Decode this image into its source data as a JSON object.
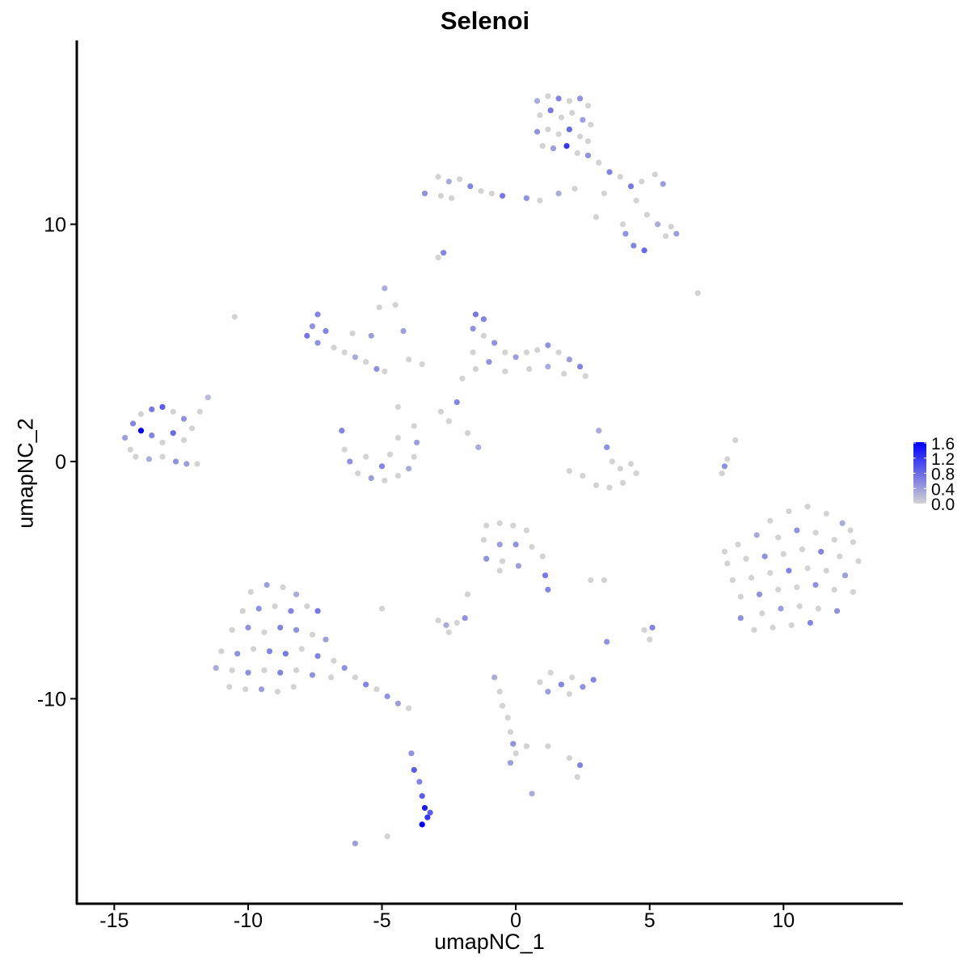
{
  "chart_data": {
    "type": "scatter",
    "title": "Selenoi",
    "xlabel": "umapNC_1",
    "ylabel": "umapNC_2",
    "xlim": [
      -16.4,
      14.43
    ],
    "ylim": [
      -18.64,
      17.75
    ],
    "xticks": [
      -15,
      -10,
      -5,
      0,
      5,
      10
    ],
    "yticks": [
      -10,
      0,
      10
    ],
    "grid": false,
    "legend": {
      "position": "right",
      "type": "colorbar",
      "range": [
        0,
        1.6
      ],
      "ticks": [
        "0.0",
        "0.4",
        "0.8",
        "1.2",
        "1.6"
      ],
      "low_color": "#d3d3d3",
      "high_color": "#0000ff"
    },
    "point_fields": [
      "x",
      "y",
      "expression"
    ],
    "points": [
      [
        0.8,
        15.2,
        0.3
      ],
      [
        1.2,
        15.4,
        0
      ],
      [
        1.6,
        15.3,
        0.6
      ],
      [
        2.0,
        15.2,
        0
      ],
      [
        2.4,
        15.3,
        0.5
      ],
      [
        2.7,
        15.0,
        0
      ],
      [
        0.9,
        14.6,
        0
      ],
      [
        1.3,
        14.8,
        0.7
      ],
      [
        1.7,
        14.5,
        0
      ],
      [
        2.1,
        14.7,
        0
      ],
      [
        2.5,
        14.4,
        0.4
      ],
      [
        2.8,
        14.2,
        0
      ],
      [
        0.8,
        13.9,
        0.5
      ],
      [
        1.2,
        14.0,
        0
      ],
      [
        1.6,
        13.8,
        0
      ],
      [
        2.0,
        14.0,
        0.8
      ],
      [
        2.4,
        13.7,
        0
      ],
      [
        2.7,
        13.5,
        0
      ],
      [
        1.0,
        13.3,
        0
      ],
      [
        1.4,
        13.2,
        0.4
      ],
      [
        1.9,
        13.3,
        1.2
      ],
      [
        2.3,
        13.0,
        0
      ],
      [
        2.7,
        12.9,
        0.5
      ],
      [
        3.1,
        12.6,
        0
      ],
      [
        3.5,
        12.2,
        0.6
      ],
      [
        3.9,
        12.0,
        0
      ],
      [
        4.3,
        11.6,
        0.7
      ],
      [
        4.7,
        11.8,
        0
      ],
      [
        5.2,
        12.1,
        0
      ],
      [
        5.5,
        11.7,
        0.4
      ],
      [
        4.5,
        11.0,
        0
      ],
      [
        4.9,
        10.4,
        0
      ],
      [
        5.3,
        10.0,
        0.3
      ],
      [
        5.8,
        9.9,
        0
      ],
      [
        6.0,
        9.6,
        0.4
      ],
      [
        5.6,
        9.5,
        0
      ],
      [
        4.1,
        9.6,
        0.5
      ],
      [
        4.4,
        9.1,
        0.6
      ],
      [
        4.8,
        8.9,
        0.8
      ],
      [
        4.0,
        10.0,
        0
      ],
      [
        3.0,
        10.3,
        0
      ],
      [
        3.3,
        11.3,
        0
      ],
      [
        2.2,
        11.5,
        0
      ],
      [
        1.6,
        11.3,
        0.3
      ],
      [
        0.9,
        11.0,
        0
      ],
      [
        0.4,
        11.1,
        0.5
      ],
      [
        -2.9,
        12.0,
        0
      ],
      [
        -2.5,
        11.8,
        0.3
      ],
      [
        -2.1,
        11.9,
        0
      ],
      [
        -1.7,
        11.6,
        0.6
      ],
      [
        -1.3,
        11.4,
        0
      ],
      [
        -0.9,
        11.3,
        0
      ],
      [
        -0.5,
        11.2,
        0.7
      ],
      [
        -2.8,
        11.2,
        0
      ],
      [
        -2.4,
        11.1,
        0
      ],
      [
        -3.4,
        11.3,
        0.5
      ],
      [
        -2.7,
        8.8,
        0.6
      ],
      [
        -2.9,
        8.6,
        0
      ],
      [
        -14.6,
        1.0,
        0.4
      ],
      [
        -14.3,
        1.6,
        0.6
      ],
      [
        -14.0,
        2.0,
        0
      ],
      [
        -13.6,
        2.2,
        0.7
      ],
      [
        -13.2,
        2.3,
        0.9
      ],
      [
        -12.8,
        2.1,
        0
      ],
      [
        -12.4,
        1.8,
        0.5
      ],
      [
        -14.4,
        0.5,
        0
      ],
      [
        -14.0,
        1.3,
        1.6
      ],
      [
        -13.6,
        1.1,
        0.6
      ],
      [
        -13.2,
        0.8,
        0
      ],
      [
        -12.8,
        1.2,
        0.8
      ],
      [
        -12.4,
        0.9,
        0
      ],
      [
        -14.2,
        0.2,
        0
      ],
      [
        -13.7,
        0.1,
        0.3
      ],
      [
        -13.2,
        0.2,
        0
      ],
      [
        -12.7,
        0.0,
        0.5
      ],
      [
        -12.3,
        -0.1,
        0.4
      ],
      [
        -11.9,
        -0.1,
        0
      ],
      [
        -11.8,
        2.1,
        0
      ],
      [
        -11.5,
        2.7,
        0.2
      ],
      [
        -12.1,
        1.4,
        0
      ],
      [
        -7.4,
        6.2,
        0.6
      ],
      [
        -7.6,
        5.7,
        0.5
      ],
      [
        -7.8,
        5.3,
        0.7
      ],
      [
        -7.4,
        5.0,
        0.5
      ],
      [
        -7.1,
        5.5,
        0.6
      ],
      [
        -6.8,
        4.8,
        0
      ],
      [
        -6.4,
        4.6,
        0
      ],
      [
        -6.0,
        4.4,
        0.3
      ],
      [
        -5.6,
        4.2,
        0
      ],
      [
        -5.2,
        3.9,
        0.5
      ],
      [
        -4.9,
        3.8,
        0
      ],
      [
        -5.4,
        5.3,
        0.4
      ],
      [
        -6.1,
        5.4,
        0
      ],
      [
        -5.1,
        6.5,
        0
      ],
      [
        -4.9,
        7.3,
        0.3
      ],
      [
        -4.5,
        6.6,
        0
      ],
      [
        -4.2,
        5.5,
        0.4
      ],
      [
        -4.0,
        4.3,
        0
      ],
      [
        -3.5,
        4.1,
        0
      ],
      [
        -10.5,
        6.1,
        0
      ],
      [
        -6.5,
        1.3,
        0.6
      ],
      [
        -6.4,
        0.5,
        0
      ],
      [
        -6.2,
        0.0,
        0.5
      ],
      [
        -5.9,
        -0.5,
        0
      ],
      [
        -5.4,
        -0.7,
        0.4
      ],
      [
        -4.9,
        -0.8,
        0
      ],
      [
        -4.4,
        -0.6,
        0
      ],
      [
        -4.0,
        -0.3,
        0.3
      ],
      [
        -3.8,
        0.2,
        0
      ],
      [
        -3.7,
        0.8,
        0.4
      ],
      [
        -3.8,
        1.5,
        0
      ],
      [
        -4.4,
        1.0,
        0
      ],
      [
        -5.0,
        -0.2,
        0.6
      ],
      [
        -5.6,
        0.2,
        0
      ],
      [
        -4.7,
        0.3,
        0
      ],
      [
        -4.4,
        2.3,
        0
      ],
      [
        -2.5,
        1.7,
        0
      ],
      [
        -1.4,
        0.6,
        0.3
      ],
      [
        -1.8,
        1.2,
        0
      ],
      [
        -2.8,
        2.1,
        0
      ],
      [
        -1.5,
        6.2,
        0.7
      ],
      [
        -1.2,
        6.0,
        0.6
      ],
      [
        -1.6,
        5.6,
        0.5
      ],
      [
        -1.2,
        5.3,
        0
      ],
      [
        -0.8,
        5.0,
        0.5
      ],
      [
        -0.4,
        4.6,
        0
      ],
      [
        0.0,
        4.4,
        0.4
      ],
      [
        0.4,
        4.6,
        0
      ],
      [
        0.8,
        4.7,
        0
      ],
      [
        1.2,
        4.9,
        0.5
      ],
      [
        1.6,
        4.6,
        0
      ],
      [
        2.0,
        4.3,
        0.4
      ],
      [
        2.4,
        4.0,
        0.6
      ],
      [
        2.6,
        3.6,
        0
      ],
      [
        1.8,
        3.7,
        0
      ],
      [
        1.2,
        4.0,
        0.3
      ],
      [
        0.5,
        3.9,
        0
      ],
      [
        -0.4,
        3.8,
        0
      ],
      [
        -1.0,
        4.2,
        0.5
      ],
      [
        -1.5,
        3.9,
        0
      ],
      [
        -2.0,
        3.5,
        0
      ],
      [
        -2.2,
        2.5,
        0.6
      ],
      [
        -1.6,
        4.6,
        0
      ],
      [
        3.1,
        1.3,
        0.3
      ],
      [
        3.4,
        0.6,
        0.5
      ],
      [
        3.6,
        0.0,
        0
      ],
      [
        3.9,
        -0.3,
        0
      ],
      [
        4.3,
        -0.1,
        0
      ],
      [
        4.5,
        -0.5,
        0
      ],
      [
        4.0,
        -0.9,
        0
      ],
      [
        3.5,
        -1.1,
        0
      ],
      [
        3.0,
        -1.0,
        0
      ],
      [
        2.5,
        -0.6,
        0
      ],
      [
        2.0,
        -0.4,
        0
      ],
      [
        8.2,
        0.9,
        0
      ],
      [
        7.9,
        0.1,
        0
      ],
      [
        7.8,
        -0.2,
        0.5
      ],
      [
        7.7,
        -0.5,
        0
      ],
      [
        6.8,
        7.1,
        0
      ],
      [
        9.5,
        -2.5,
        0
      ],
      [
        10.2,
        -2.1,
        0
      ],
      [
        10.9,
        -1.9,
        0
      ],
      [
        11.6,
        -2.2,
        0
      ],
      [
        12.2,
        -2.6,
        0.3
      ],
      [
        8.3,
        -3.5,
        0
      ],
      [
        9.0,
        -3.1,
        0.3
      ],
      [
        9.8,
        -3.2,
        0
      ],
      [
        10.5,
        -2.9,
        0.5
      ],
      [
        11.2,
        -3.0,
        0
      ],
      [
        11.9,
        -3.3,
        0
      ],
      [
        12.6,
        -3.4,
        0
      ],
      [
        7.9,
        -4.3,
        0
      ],
      [
        8.6,
        -4.1,
        0
      ],
      [
        9.3,
        -4.0,
        0.5
      ],
      [
        10.0,
        -3.9,
        0
      ],
      [
        10.7,
        -3.7,
        0
      ],
      [
        11.4,
        -3.8,
        0.6
      ],
      [
        12.1,
        -4.0,
        0
      ],
      [
        12.8,
        -4.2,
        0
      ],
      [
        8.1,
        -5.0,
        0
      ],
      [
        8.8,
        -4.9,
        0
      ],
      [
        9.5,
        -4.7,
        0
      ],
      [
        10.2,
        -4.6,
        0.6
      ],
      [
        10.9,
        -4.5,
        0
      ],
      [
        11.6,
        -4.6,
        0
      ],
      [
        12.3,
        -4.8,
        0.4
      ],
      [
        8.4,
        -5.7,
        0
      ],
      [
        9.1,
        -5.6,
        0.5
      ],
      [
        9.8,
        -5.4,
        0
      ],
      [
        10.5,
        -5.3,
        0
      ],
      [
        11.2,
        -5.2,
        0.5
      ],
      [
        11.9,
        -5.4,
        0
      ],
      [
        12.6,
        -5.5,
        0
      ],
      [
        8.4,
        -6.6,
        0.5
      ],
      [
        9.2,
        -6.4,
        0
      ],
      [
        9.9,
        -6.2,
        0.4
      ],
      [
        10.6,
        -6.1,
        0
      ],
      [
        11.3,
        -6.2,
        0
      ],
      [
        12.0,
        -6.3,
        0.5
      ],
      [
        8.9,
        -7.1,
        0
      ],
      [
        9.6,
        -7.0,
        0
      ],
      [
        10.3,
        -6.9,
        0
      ],
      [
        11.0,
        -6.8,
        0.6
      ],
      [
        12.5,
        -2.9,
        0
      ],
      [
        7.8,
        -3.8,
        0
      ],
      [
        -1.1,
        -2.7,
        0
      ],
      [
        -0.6,
        -2.6,
        0
      ],
      [
        -0.1,
        -2.7,
        0
      ],
      [
        0.4,
        -2.9,
        0
      ],
      [
        -1.2,
        -3.3,
        0
      ],
      [
        -0.6,
        -3.5,
        0.4
      ],
      [
        0.0,
        -3.5,
        0.5
      ],
      [
        0.6,
        -3.6,
        0
      ],
      [
        1.0,
        -4.0,
        0
      ],
      [
        -1.1,
        -4.1,
        0.5
      ],
      [
        -0.5,
        -4.2,
        0
      ],
      [
        0.1,
        -4.4,
        0.4
      ],
      [
        -0.6,
        -4.6,
        0
      ],
      [
        1.1,
        -4.8,
        0.7
      ],
      [
        1.2,
        -5.4,
        0.6
      ],
      [
        2.8,
        -5.0,
        0
      ],
      [
        -9.9,
        -5.5,
        0
      ],
      [
        -9.3,
        -5.2,
        0.4
      ],
      [
        -8.7,
        -5.3,
        0
      ],
      [
        -8.2,
        -5.6,
        0.3
      ],
      [
        -10.2,
        -6.3,
        0
      ],
      [
        -9.6,
        -6.2,
        0.5
      ],
      [
        -9.0,
        -6.1,
        0
      ],
      [
        -8.4,
        -6.3,
        0.6
      ],
      [
        -7.8,
        -6.1,
        0
      ],
      [
        -7.4,
        -6.3,
        0.7
      ],
      [
        -10.6,
        -7.1,
        0
      ],
      [
        -10.0,
        -7.0,
        0.5
      ],
      [
        -9.4,
        -7.2,
        0
      ],
      [
        -8.8,
        -7.0,
        0.6
      ],
      [
        -8.2,
        -7.1,
        0.5
      ],
      [
        -7.6,
        -7.3,
        0
      ],
      [
        -7.1,
        -7.5,
        0.4
      ],
      [
        -11.0,
        -8.0,
        0
      ],
      [
        -10.4,
        -8.1,
        0.5
      ],
      [
        -9.8,
        -7.9,
        0
      ],
      [
        -9.2,
        -8.0,
        0.6
      ],
      [
        -8.6,
        -8.1,
        0.7
      ],
      [
        -8.0,
        -7.9,
        0
      ],
      [
        -7.4,
        -8.2,
        0.6
      ],
      [
        -6.8,
        -8.4,
        0
      ],
      [
        -11.2,
        -8.7,
        0.3
      ],
      [
        -10.6,
        -8.8,
        0
      ],
      [
        -10.0,
        -8.9,
        0.5
      ],
      [
        -9.4,
        -8.8,
        0
      ],
      [
        -8.8,
        -8.9,
        0.6
      ],
      [
        -8.2,
        -8.8,
        0
      ],
      [
        -7.6,
        -9.0,
        0.5
      ],
      [
        -10.7,
        -9.5,
        0
      ],
      [
        -10.1,
        -9.6,
        0
      ],
      [
        -9.5,
        -9.6,
        0.4
      ],
      [
        -8.9,
        -9.7,
        0
      ],
      [
        -8.3,
        -9.5,
        0
      ],
      [
        -6.4,
        -8.7,
        0.5
      ],
      [
        -6.0,
        -9.1,
        0
      ],
      [
        -5.6,
        -9.4,
        0.6
      ],
      [
        -5.2,
        -9.6,
        0
      ],
      [
        -4.8,
        -9.9,
        0.5
      ],
      [
        -4.4,
        -10.2,
        0.4
      ],
      [
        -4.0,
        -10.4,
        0
      ],
      [
        -6.9,
        -9.1,
        0
      ],
      [
        -2.9,
        -6.7,
        0
      ],
      [
        -2.6,
        -6.9,
        0.3
      ],
      [
        -2.2,
        -6.8,
        0
      ],
      [
        -1.9,
        -6.6,
        0.5
      ],
      [
        -2.5,
        -7.2,
        0
      ],
      [
        -1.8,
        -5.6,
        0
      ],
      [
        0.9,
        -9.3,
        0
      ],
      [
        1.3,
        -8.9,
        0
      ],
      [
        1.7,
        -9.4,
        0.6
      ],
      [
        2.1,
        -9.1,
        0
      ],
      [
        2.5,
        -9.5,
        0.5
      ],
      [
        2.9,
        -9.2,
        0.6
      ],
      [
        1.2,
        -9.7,
        0.4
      ],
      [
        2.0,
        -9.8,
        0
      ],
      [
        -0.8,
        -9.1,
        0.3
      ],
      [
        -0.6,
        -9.7,
        0
      ],
      [
        -0.5,
        -10.3,
        0
      ],
      [
        -0.3,
        -10.8,
        0
      ],
      [
        -0.2,
        -11.4,
        0
      ],
      [
        -0.1,
        -11.9,
        0.5
      ],
      [
        0.0,
        -12.3,
        0
      ],
      [
        -0.2,
        -12.7,
        0.4
      ],
      [
        0.4,
        -12.0,
        0
      ],
      [
        1.2,
        -12.0,
        0
      ],
      [
        2.0,
        -12.5,
        0
      ],
      [
        2.4,
        -12.8,
        0.6
      ],
      [
        2.3,
        -13.3,
        0
      ],
      [
        0.6,
        -14.0,
        0.3
      ],
      [
        -3.6,
        -13.5,
        0.6
      ],
      [
        -3.5,
        -14.1,
        0.9
      ],
      [
        -3.4,
        -14.6,
        1.4
      ],
      [
        -3.3,
        -15.0,
        1.2
      ],
      [
        -3.5,
        -15.3,
        1.6
      ],
      [
        -3.2,
        -14.8,
        0.9
      ],
      [
        -3.9,
        -12.3,
        0.5
      ],
      [
        -3.8,
        -13.0,
        0.9
      ],
      [
        -4.8,
        -15.8,
        0
      ],
      [
        -6.0,
        -16.1,
        0.4
      ],
      [
        4.8,
        -7.1,
        0
      ],
      [
        5.1,
        -7.0,
        0.6
      ],
      [
        5.0,
        -7.5,
        0
      ],
      [
        3.4,
        -7.6,
        0.5
      ],
      [
        3.3,
        -5.0,
        0
      ],
      [
        -5.0,
        -6.2,
        0
      ]
    ]
  }
}
